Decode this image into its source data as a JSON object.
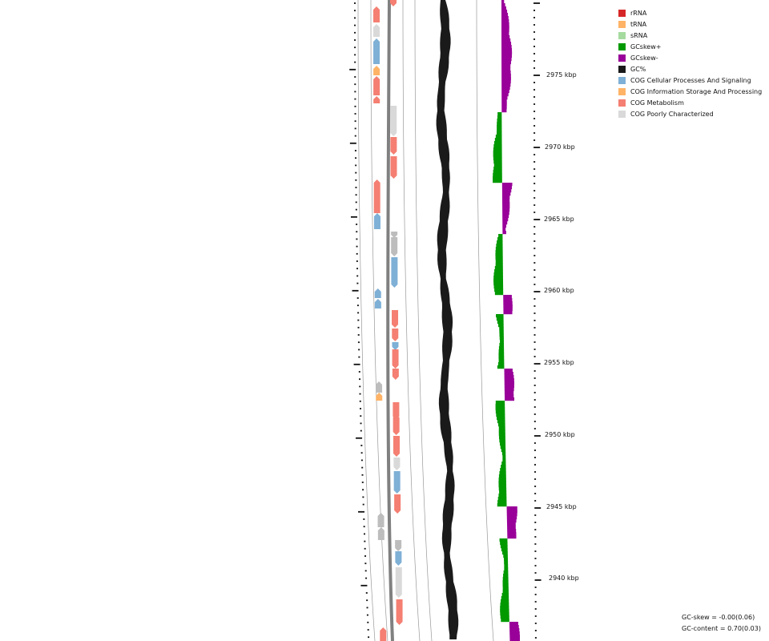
{
  "legend": [
    {
      "label": "rRNA",
      "color": "#d62728"
    },
    {
      "label": "tRNA",
      "color": "#ffb366"
    },
    {
      "label": "sRNA",
      "color": "#a6dba0"
    },
    {
      "label": "GCskew+",
      "color": "#009900"
    },
    {
      "label": "GCskew-",
      "color": "#990099"
    },
    {
      "label": "GC%",
      "color": "#1a1a1a"
    },
    {
      "label": "COG Cellular Processes And Signaling",
      "color": "#7fb0d6"
    },
    {
      "label": "COG Information Storage And Processing",
      "color": "#ffb366"
    },
    {
      "label": "COG Metabolism",
      "color": "#f47f72"
    },
    {
      "label": "COG Poorly Characterized",
      "color": "#d9d9d9"
    }
  ],
  "colors": {
    "metabolism": "#f47f72",
    "cellular": "#7fb0d6",
    "info": "#ffb366",
    "poor": "#d9d9d9",
    "unassigned": "#bdbdbd",
    "gc_content": "#1a1a1a",
    "skew_plus": "#009900",
    "skew_minus": "#990099",
    "backbone": "#808080"
  },
  "kbp_labels": [
    "2975 kbp",
    "2970 kbp",
    "2965 kbp",
    "2960 kbp",
    "2955 kbp",
    "2950 kbp",
    "2945 kbp",
    "2940 kbp"
  ],
  "stats": {
    "gc_skew": "GC-skew = -0.00(0.06)",
    "gc_content": "GC-content = 0.70(0.03)"
  }
}
